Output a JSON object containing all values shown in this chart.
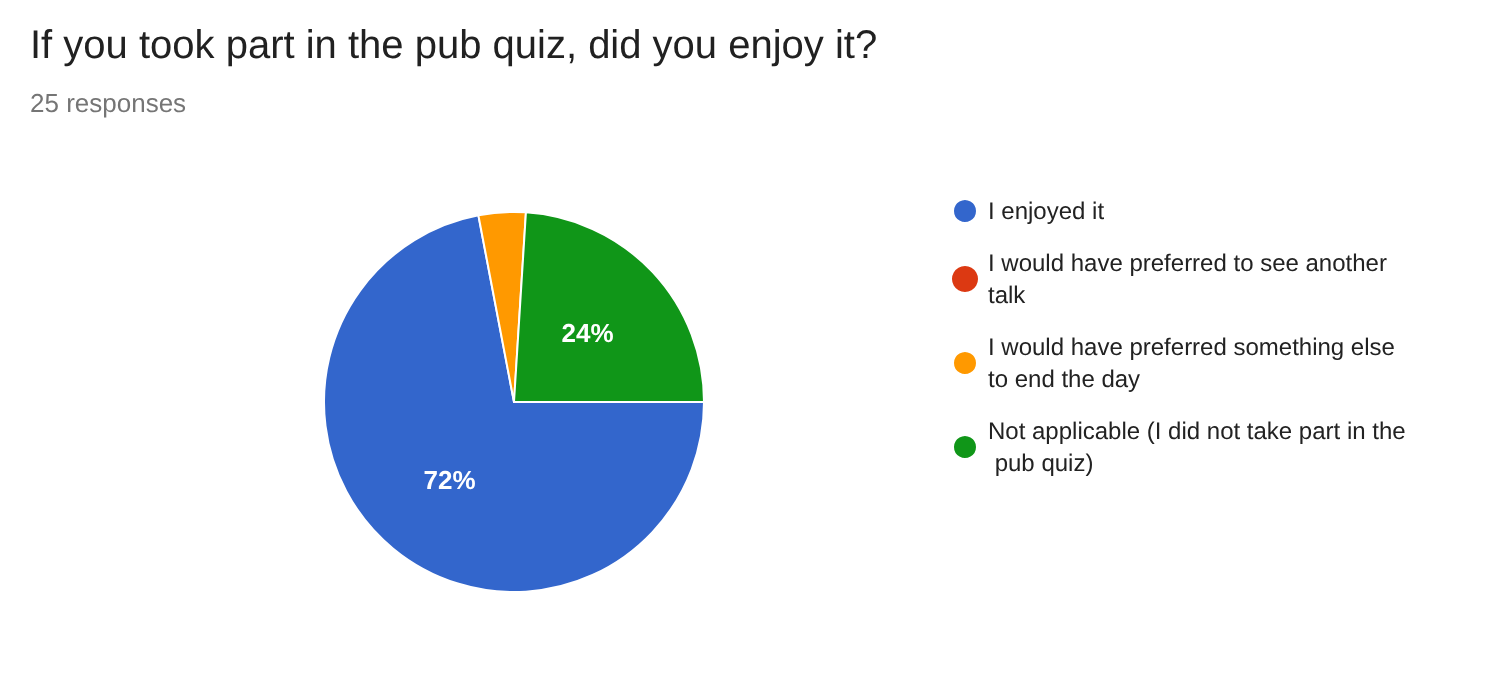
{
  "chart_data": {
    "type": "pie",
    "title": "If you took part in the pub quiz, did you enjoy it?",
    "subtitle": "25 responses",
    "categories": [
      "I enjoyed it",
      "I would have preferred to see another talk",
      "I would have preferred something else to end the day",
      "Not applicable (I did not take part in the pub quiz)"
    ],
    "values": [
      72,
      0,
      4,
      24
    ],
    "colors": [
      "#3366cc",
      "#dc3912",
      "#ff9900",
      "#109618"
    ],
    "value_labels": [
      "72%",
      null,
      null,
      "24%"
    ],
    "legend": "right"
  }
}
